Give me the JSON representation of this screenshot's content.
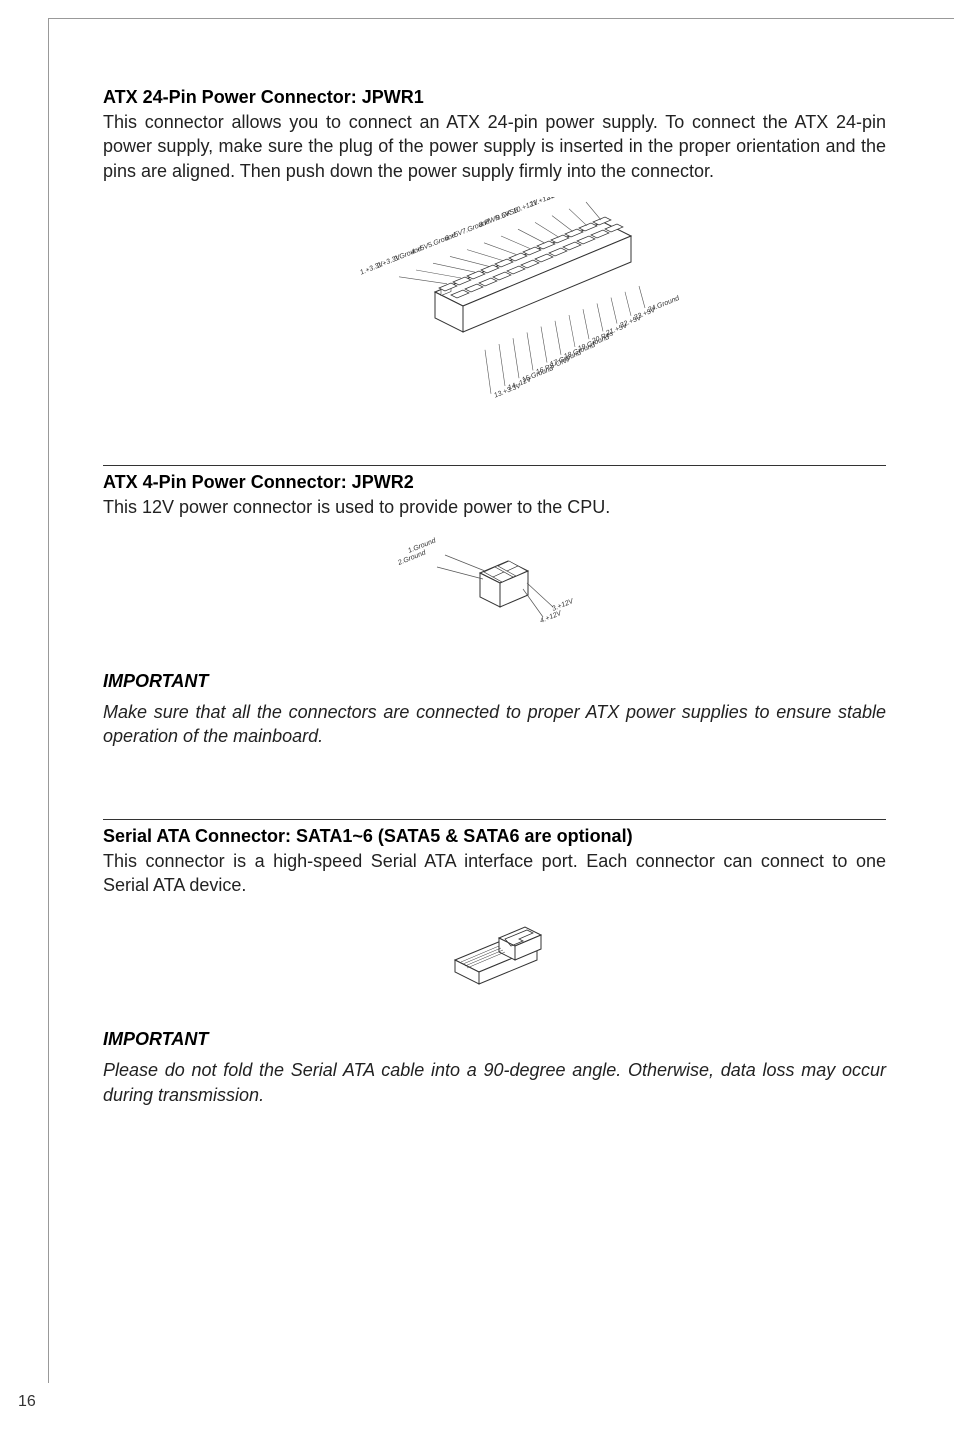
{
  "sections": {
    "atx24": {
      "title": "ATX 24-Pin Power Connector: JPWR1",
      "body": "This connector allows you to connect an ATX 24-pin power supply. To connect the ATX 24-pin power supply, make sure the plug of the power supply is inserted in the proper orientation and the pins are aligned. Then push down the power supply firmly into the connector."
    },
    "atx4": {
      "title": "ATX 4-Pin Power Connector: JPWR2",
      "body": "This 12V power connector is used to provide power to the CPU."
    },
    "important1": {
      "label": "IMPORTANT",
      "text": "Make sure that all the connectors are connected to proper ATX power supplies to ensure stable operation of the mainboard."
    },
    "sata": {
      "title": "Serial ATA Connector: SATA1~6 (SATA5 & SATA6 are optional)",
      "body": "This connector is a high-speed Serial ATA interface port. Each connector can connect to one Serial ATA device."
    },
    "important2": {
      "label": "IMPORTANT",
      "text": "Please do not fold the Serial ATA cable into a 90-degree angle. Otherwise, data loss may occur during transmission."
    }
  },
  "diagrams": {
    "atx24_pins_left": [
      "12.+3.3V",
      "11.+12V",
      "10.+12V",
      "9.5VSB",
      "8.PWR OK",
      "7.Ground",
      "6.+5V",
      "5.Ground",
      "4.+5V",
      "3.Ground",
      "2.+3.3V",
      "1.+3.3V"
    ],
    "atx24_pins_right": [
      "24.Ground",
      "23.+5V",
      "22.+5V",
      "21.+5V",
      "20.Res",
      "19.Ground",
      "18.Ground",
      "17.Ground",
      "16.PS-ON#",
      "15.Ground",
      "14.-12V",
      "13.+3.3V"
    ],
    "atx4_pins_left": [
      "1.Ground",
      "2.Ground"
    ],
    "atx4_pins_right": [
      "3.+12V",
      "4.+12V"
    ],
    "colors": {
      "connector_fill": "#ffffff",
      "connector_stroke": "#333333",
      "line_stroke": "#555555"
    }
  },
  "page_number": "16"
}
